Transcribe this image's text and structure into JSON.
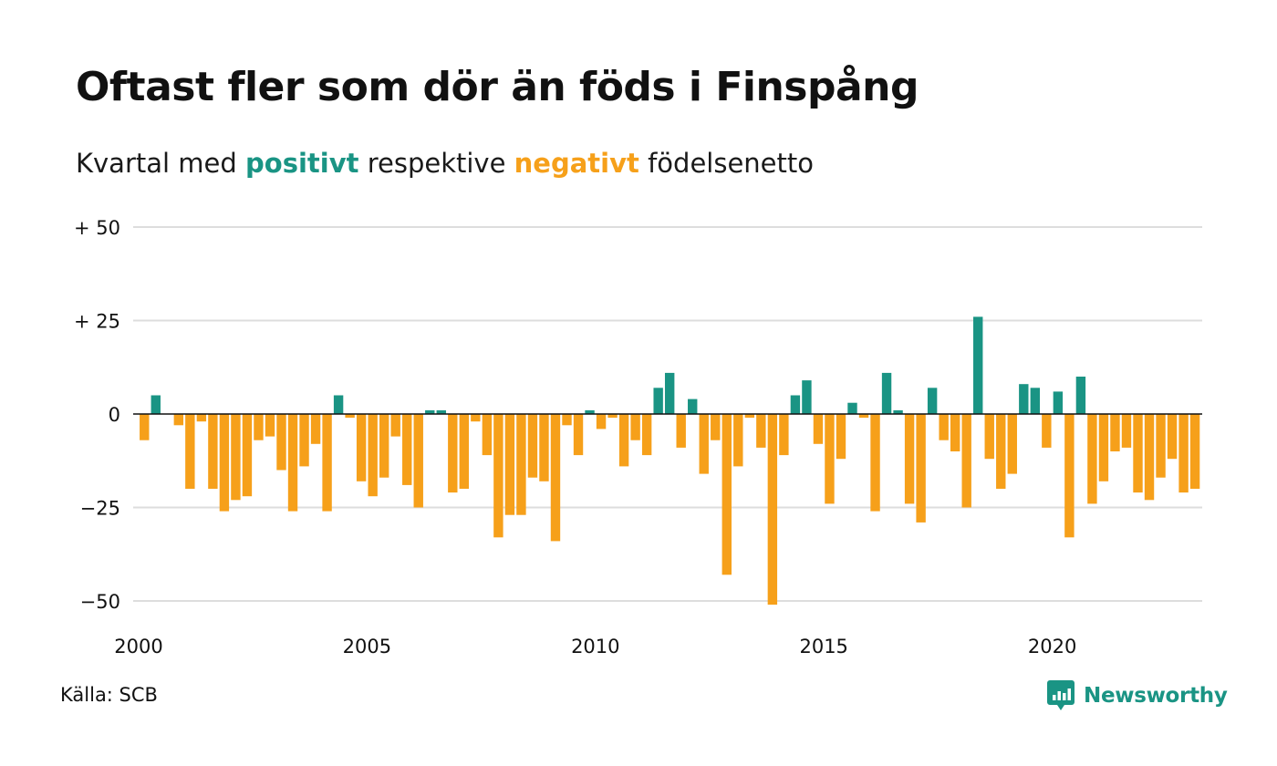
{
  "header": {
    "title": "Oftast fler som dör än föds i Finspång",
    "subtitle_before": "Kvartal med ",
    "subtitle_positive": "positivt",
    "subtitle_middle": " respektive ",
    "subtitle_negative": "negativt",
    "subtitle_after": " födelsenetto"
  },
  "footer": {
    "source": "Källa: SCB",
    "brand": "Newsworthy"
  },
  "colors": {
    "positive": "#1a9484",
    "negative": "#f6a01a",
    "grid": "#dddddd",
    "zero_line": "#111111"
  },
  "icons": {
    "brand_logo": "newsworthy-chat-bars-icon"
  },
  "chart_data": {
    "type": "bar",
    "x_start": "2000 Q1",
    "frequency": "quarter",
    "x_ticks": [
      {
        "x": 2000,
        "label": "2000"
      },
      {
        "x": 2005,
        "label": "2005"
      },
      {
        "x": 2010,
        "label": "2010"
      },
      {
        "x": 2015,
        "label": "2015"
      },
      {
        "x": 2020,
        "label": "2020"
      }
    ],
    "y_ticks": [
      {
        "value": 50,
        "label": "+ 50"
      },
      {
        "value": 25,
        "label": "+ 25"
      },
      {
        "value": 0,
        "label": "0"
      },
      {
        "value": -25,
        "label": "−25"
      },
      {
        "value": -50,
        "label": "−50"
      }
    ],
    "ylim": [
      -55,
      50
    ],
    "grid": true,
    "values": [
      -7,
      5,
      0,
      -3,
      -20,
      -2,
      -20,
      -26,
      -23,
      -22,
      -7,
      -6,
      -15,
      -26,
      -14,
      -8,
      -26,
      5,
      -1,
      -18,
      -22,
      -17,
      -6,
      -19,
      -25,
      1,
      1,
      -21,
      -20,
      -2,
      -11,
      -33,
      -27,
      -27,
      -17,
      -18,
      -34,
      -3,
      -11,
      1,
      -4,
      -1,
      -14,
      -7,
      -11,
      7,
      11,
      -9,
      4,
      -16,
      -7,
      -43,
      -14,
      -1,
      -9,
      -51,
      -11,
      5,
      9,
      -8,
      -24,
      -12,
      3,
      -1,
      -26,
      11,
      1,
      -24,
      -29,
      7,
      -7,
      -10,
      -25,
      26,
      -12,
      -20,
      -16,
      8,
      7,
      -9,
      6,
      -33,
      10,
      -24,
      -18,
      -10,
      -9,
      -21,
      -23,
      -17,
      -12,
      -21,
      -20
    ]
  }
}
